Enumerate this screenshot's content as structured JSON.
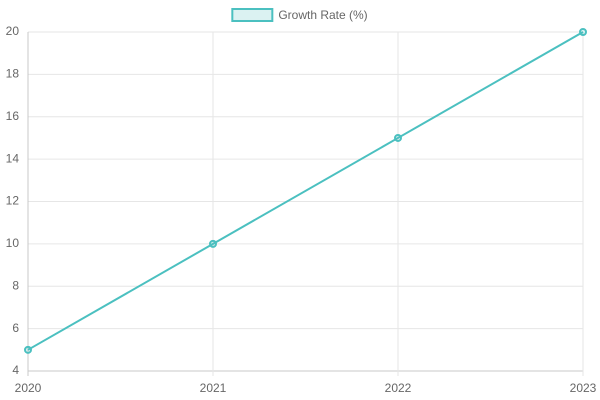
{
  "chart_data": {
    "type": "line",
    "categories": [
      "2020",
      "2021",
      "2022",
      "2023"
    ],
    "series": [
      {
        "name": "Growth Rate (%)",
        "color": "#4bc0c0",
        "values": [
          5,
          10,
          15,
          20
        ]
      }
    ],
    "ylim": [
      4,
      20
    ],
    "yticks": [
      4,
      6,
      8,
      10,
      12,
      14,
      16,
      18,
      20
    ],
    "grid": true,
    "legend": "top"
  }
}
